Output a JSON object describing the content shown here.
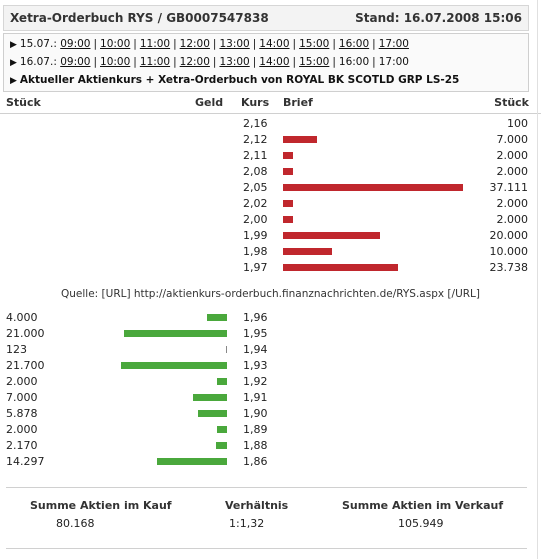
{
  "header": {
    "title": "Xetra-Orderbuch RYS / GB0007547838",
    "stand": "Stand: 16.07.2008 15:06"
  },
  "time_rows": [
    {
      "date": "15.07.:",
      "times": [
        "09:00",
        "10:00",
        "11:00",
        "12:00",
        "13:00",
        "14:00",
        "15:00",
        "16:00",
        "17:00"
      ],
      "linked": [
        true,
        true,
        true,
        true,
        true,
        true,
        true,
        true,
        true
      ]
    },
    {
      "date": "16.07.:",
      "times": [
        "09:00",
        "10:00",
        "11:00",
        "12:00",
        "13:00",
        "14:00",
        "15:00",
        "16:00",
        "17:00"
      ],
      "linked": [
        true,
        true,
        true,
        true,
        true,
        true,
        true,
        false,
        false
      ]
    }
  ],
  "current_link": "Aktueller Aktienkurs + Xetra-Orderbuch von ROYAL BK SCOTLD GRP LS-25",
  "columns": {
    "stueck_left": "Stück",
    "geld": "Geld",
    "kurs": "Kurs",
    "brief": "Brief",
    "stueck_right": "Stück"
  },
  "colors": {
    "ask": "#c0272d",
    "bid": "#4aa83c"
  },
  "asks": [
    {
      "kurs": "2,16",
      "stueck": "100",
      "qty": 100
    },
    {
      "kurs": "2,12",
      "stueck": "7.000",
      "qty": 7000
    },
    {
      "kurs": "2,11",
      "stueck": "2.000",
      "qty": 2000
    },
    {
      "kurs": "2,08",
      "stueck": "2.000",
      "qty": 2000
    },
    {
      "kurs": "2,05",
      "stueck": "37.111",
      "qty": 37111
    },
    {
      "kurs": "2,02",
      "stueck": "2.000",
      "qty": 2000
    },
    {
      "kurs": "2,00",
      "stueck": "2.000",
      "qty": 2000
    },
    {
      "kurs": "1,99",
      "stueck": "20.000",
      "qty": 20000
    },
    {
      "kurs": "1,98",
      "stueck": "10.000",
      "qty": 10000
    },
    {
      "kurs": "1,97",
      "stueck": "23.738",
      "qty": 23738
    }
  ],
  "source": "Quelle: [URL] http://aktienkurs-orderbuch.finanznachrichten.de/RYS.aspx [/URL]",
  "bids": [
    {
      "kurs": "1,96",
      "stueck": "4.000",
      "qty": 4000
    },
    {
      "kurs": "1,95",
      "stueck": "21.000",
      "qty": 21000
    },
    {
      "kurs": "1,94",
      "stueck": "123",
      "qty": 123
    },
    {
      "kurs": "1,93",
      "stueck": "21.700",
      "qty": 21700
    },
    {
      "kurs": "1,92",
      "stueck": "2.000",
      "qty": 2000
    },
    {
      "kurs": "1,91",
      "stueck": "7.000",
      "qty": 7000
    },
    {
      "kurs": "1,90",
      "stueck": "5.878",
      "qty": 5878
    },
    {
      "kurs": "1,89",
      "stueck": "2.000",
      "qty": 2000
    },
    {
      "kurs": "1,88",
      "stueck": "2.170",
      "qty": 2170
    },
    {
      "kurs": "1,86",
      "stueck": "14.297",
      "qty": 14297
    }
  ],
  "summary": {
    "kauf_label": "Summe Aktien im Kauf",
    "kauf_value": "80.168",
    "ratio_label": "Verhältnis",
    "ratio_value": "1:1,32",
    "verkauf_label": "Summe Aktien im Verkauf",
    "verkauf_value": "105.949"
  }
}
